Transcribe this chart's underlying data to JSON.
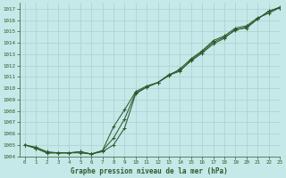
{
  "title": "Graphe pression niveau de la mer (hPa)",
  "bg_color": "#c5e8e8",
  "grid_color": "#aed4d4",
  "line_color": "#2d5a2d",
  "xlim": [
    -0.5,
    23
  ],
  "ylim": [
    1004,
    1017.5
  ],
  "xticks": [
    0,
    1,
    2,
    3,
    4,
    5,
    6,
    7,
    8,
    9,
    10,
    11,
    12,
    13,
    14,
    15,
    16,
    17,
    18,
    19,
    20,
    21,
    22,
    23
  ],
  "yticks": [
    1004,
    1005,
    1006,
    1007,
    1008,
    1009,
    1010,
    1011,
    1012,
    1013,
    1014,
    1015,
    1016,
    1017
  ],
  "series": [
    [
      1005.0,
      1004.8,
      1004.4,
      1004.3,
      1004.3,
      1004.3,
      1004.2,
      1004.4,
      1005.0,
      1006.5,
      1009.5,
      1010.1,
      1010.5,
      1011.2,
      1011.6,
      1012.4,
      1013.1,
      1013.9,
      1014.4,
      1015.2,
      1015.3,
      1016.1,
      1016.8,
      1017.1
    ],
    [
      1005.0,
      1004.7,
      1004.3,
      1004.3,
      1004.3,
      1004.4,
      1004.2,
      1004.5,
      1006.6,
      1008.1,
      1009.7,
      1010.2,
      1010.5,
      1011.1,
      1011.7,
      1012.6,
      1013.3,
      1014.2,
      1014.6,
      1015.3,
      1015.5,
      1016.2,
      1016.6,
      1017.1
    ],
    [
      1005.0,
      1004.7,
      1004.3,
      1004.3,
      1004.3,
      1004.4,
      1004.2,
      1004.5,
      1005.6,
      1007.3,
      1009.6,
      1010.1,
      1010.5,
      1011.15,
      1011.5,
      1012.5,
      1013.2,
      1014.05,
      1014.5,
      1015.1,
      1015.4,
      1016.1,
      1016.75,
      1017.15
    ]
  ]
}
